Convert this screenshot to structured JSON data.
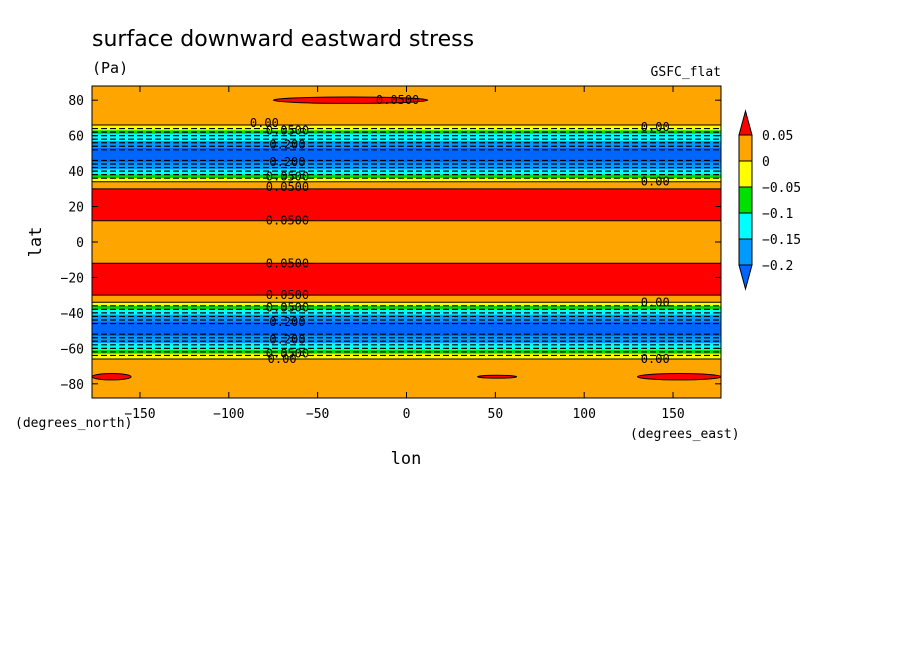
{
  "chart_data": {
    "type": "heatmap",
    "title": "surface downward eastward stress",
    "units": "(Pa)",
    "source": "GSFC_flat",
    "xlabel": "lon",
    "ylabel": "lat",
    "xunits": "(degrees_east)",
    "yunits": "(degrees_north)",
    "xlim": [
      -177,
      177
    ],
    "ylim": [
      -88,
      88
    ],
    "xticks": [
      -150,
      -100,
      -50,
      0,
      50,
      100,
      150
    ],
    "yticks": [
      -80,
      -60,
      -40,
      -20,
      0,
      20,
      40,
      60,
      80
    ],
    "colorbar": {
      "labels": [
        "0.05",
        "0",
        "−0.05",
        "−0.1",
        "−0.15",
        "−0.2"
      ],
      "levels": [
        0.05,
        0,
        -0.05,
        -0.1,
        -0.15,
        -0.2
      ],
      "colors": [
        "#ff0000",
        "#ffa500",
        "#ffff00",
        "#00e000",
        "#00ffff",
        "#0099ff",
        "#0066ff"
      ]
    },
    "bands": [
      {
        "lat0": 88,
        "lat1": 66,
        "value": 0.02,
        "color": "#ffa500"
      },
      {
        "lat0": 66,
        "lat1": 63,
        "value": -0.03,
        "color": "#ffff00"
      },
      {
        "lat0": 63,
        "lat1": 61,
        "value": -0.08,
        "color": "#00e000"
      },
      {
        "lat0": 61,
        "lat1": 57,
        "value": -0.13,
        "color": "#00ffff"
      },
      {
        "lat0": 57,
        "lat1": 53,
        "value": -0.17,
        "color": "#0099ff"
      },
      {
        "lat0": 53,
        "lat1": 45,
        "value": -0.22,
        "color": "#0066ff"
      },
      {
        "lat0": 45,
        "lat1": 41,
        "value": -0.17,
        "color": "#0099ff"
      },
      {
        "lat0": 41,
        "lat1": 38,
        "value": -0.13,
        "color": "#00ffff"
      },
      {
        "lat0": 38,
        "lat1": 36,
        "value": -0.08,
        "color": "#00e000"
      },
      {
        "lat0": 36,
        "lat1": 34,
        "value": -0.03,
        "color": "#ffff00"
      },
      {
        "lat0": 34,
        "lat1": 30,
        "value": 0.02,
        "color": "#ffa500"
      },
      {
        "lat0": 30,
        "lat1": 12,
        "value": 0.07,
        "color": "#ff0000"
      },
      {
        "lat0": 12,
        "lat1": -12,
        "value": 0.02,
        "color": "#ffa500"
      },
      {
        "lat0": -12,
        "lat1": -30,
        "value": 0.07,
        "color": "#ff0000"
      },
      {
        "lat0": -30,
        "lat1": -34,
        "value": 0.02,
        "color": "#ffa500"
      },
      {
        "lat0": -34,
        "lat1": -36,
        "value": -0.03,
        "color": "#ffff00"
      },
      {
        "lat0": -36,
        "lat1": -38,
        "value": -0.08,
        "color": "#00e000"
      },
      {
        "lat0": -38,
        "lat1": -41,
        "value": -0.13,
        "color": "#00ffff"
      },
      {
        "lat0": -41,
        "lat1": -45,
        "value": -0.17,
        "color": "#0099ff"
      },
      {
        "lat0": -45,
        "lat1": -53,
        "value": -0.22,
        "color": "#0066ff"
      },
      {
        "lat0": -53,
        "lat1": -57,
        "value": -0.17,
        "color": "#0099ff"
      },
      {
        "lat0": -57,
        "lat1": -61,
        "value": -0.13,
        "color": "#00ffff"
      },
      {
        "lat0": -61,
        "lat1": -63,
        "value": -0.08,
        "color": "#00e000"
      },
      {
        "lat0": -63,
        "lat1": -66,
        "value": -0.03,
        "color": "#ffff00"
      },
      {
        "lat0": -66,
        "lat1": -88,
        "value": 0.02,
        "color": "#ffa500"
      }
    ],
    "patches": [
      {
        "lon0": -75,
        "lon1": 12,
        "lat_center": 80,
        "half_height": 1.8,
        "value": 0.06,
        "color": "#ff0000"
      },
      {
        "lon0": -177,
        "lon1": -155,
        "lat_center": -76,
        "half_height": 1.8,
        "value": 0.06,
        "color": "#ff0000"
      },
      {
        "lon0": 40,
        "lon1": 62,
        "lat_center": -76,
        "half_height": 0.8,
        "value": 0.06,
        "color": "#ff0000"
      },
      {
        "lon0": 130,
        "lon1": 177,
        "lat_center": -76,
        "half_height": 1.8,
        "value": 0.06,
        "color": "#ff0000"
      }
    ],
    "solid_contour_lats": [
      66,
      34,
      30,
      12,
      -12,
      -30,
      -34,
      -66
    ],
    "dashed_contour_lats": [
      64,
      62,
      60,
      58,
      56,
      54,
      52,
      46,
      44,
      42,
      40,
      38,
      36,
      -36,
      -38,
      -40,
      -42,
      -44,
      -46,
      -52,
      -54,
      -56,
      -58,
      -60,
      -62,
      -64
    ],
    "contour_labels": [
      {
        "text": "0.0500",
        "lon": -5,
        "lat": 80
      },
      {
        "text": "0.00",
        "lon": -80,
        "lat": 67
      },
      {
        "text": "0.0500",
        "lon": -67,
        "lat": 63
      },
      {
        "text": "0.200",
        "lon": -67,
        "lat": 55
      },
      {
        "text": "0.00",
        "lon": 140,
        "lat": 65
      },
      {
        "text": "0.200",
        "lon": -67,
        "lat": 45
      },
      {
        "text": "0.0500",
        "lon": -67,
        "lat": 37
      },
      {
        "text": "0.00",
        "lon": 140,
        "lat": 34
      },
      {
        "text": "0.0500",
        "lon": -67,
        "lat": 31
      },
      {
        "text": "0.0500",
        "lon": -67,
        "lat": 12
      },
      {
        "text": "0.0500",
        "lon": -67,
        "lat": -12
      },
      {
        "text": "0.0500",
        "lon": -67,
        "lat": -30
      },
      {
        "text": "0.0500",
        "lon": -67,
        "lat": -37
      },
      {
        "text": "0.00",
        "lon": 140,
        "lat": -34
      },
      {
        "text": "0.200",
        "lon": -67,
        "lat": -45
      },
      {
        "text": "0.200",
        "lon": -67,
        "lat": -55
      },
      {
        "text": "0.0500",
        "lon": -67,
        "lat": -63
      },
      {
        "text": "0.00",
        "lon": -70,
        "lat": -66
      },
      {
        "text": "0.00",
        "lon": 140,
        "lat": -66
      }
    ]
  }
}
